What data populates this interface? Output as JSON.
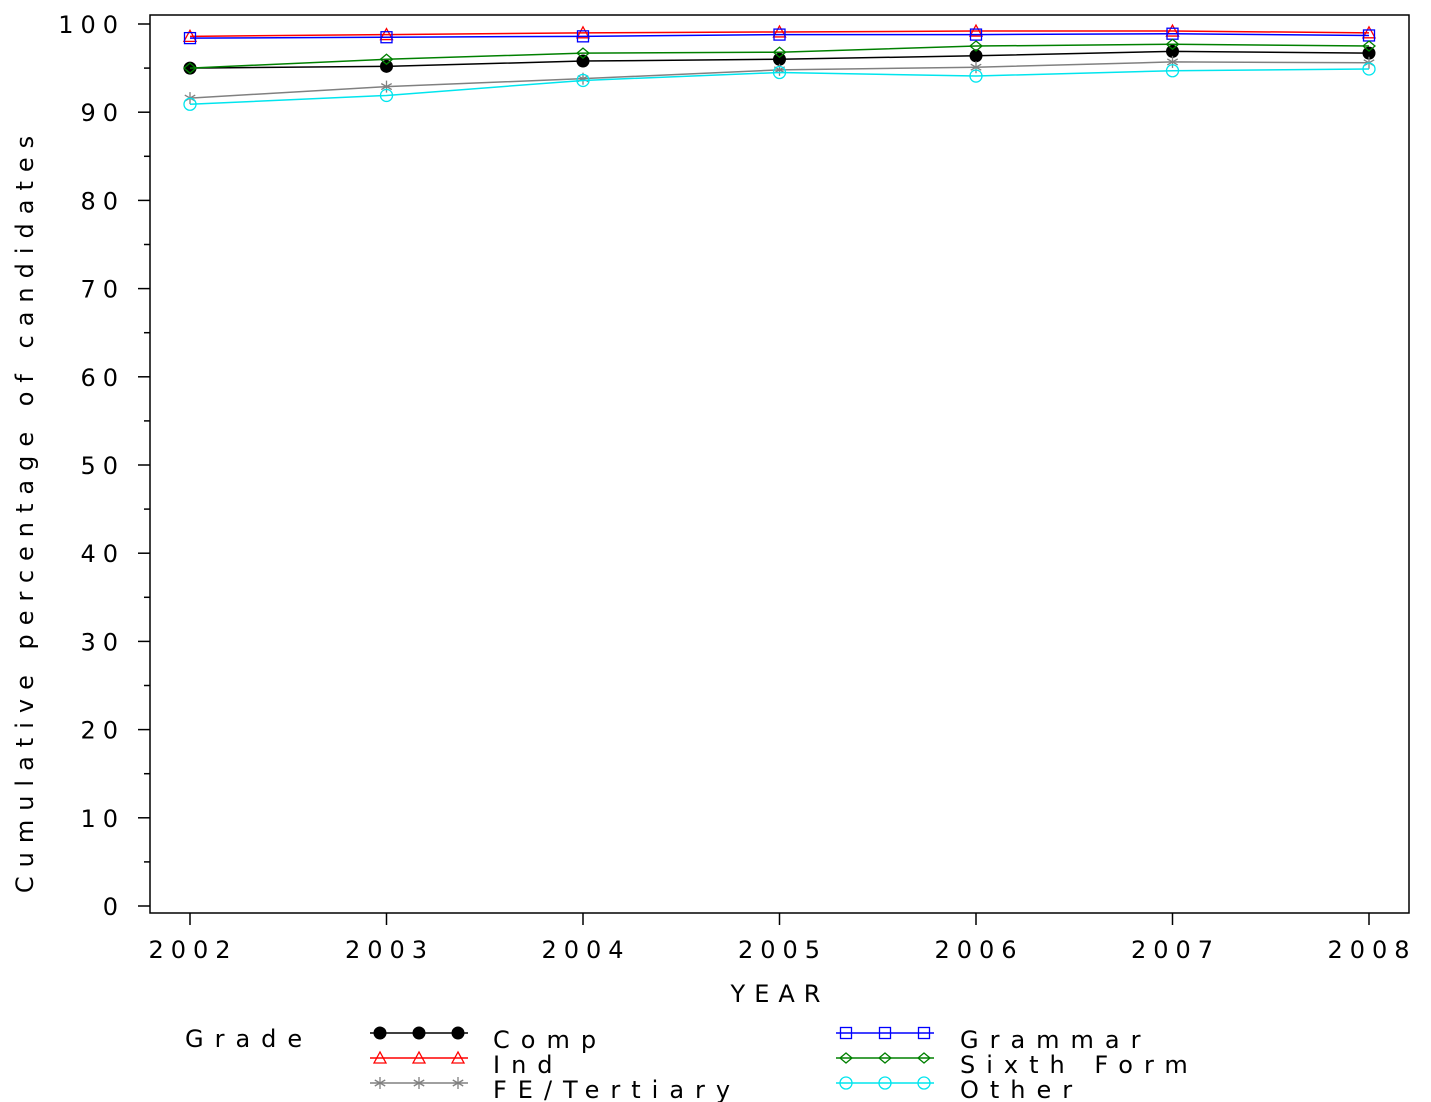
{
  "chart_data": {
    "type": "line",
    "xlabel": "YEAR",
    "ylabel": "Cumulative percentage of candidates",
    "x": [
      "2002",
      "2003",
      "2004",
      "2005",
      "2006",
      "2007",
      "2008"
    ],
    "ylim": [
      0,
      100
    ],
    "yticks": [
      0,
      10,
      20,
      30,
      40,
      50,
      60,
      70,
      80,
      90,
      100
    ],
    "grid": false,
    "legend": {
      "title": "Grade",
      "placement": "bottom"
    },
    "series": [
      {
        "name": "Comp",
        "color": "#000000",
        "marker": "filled-circle",
        "values": [
          95.0,
          95.2,
          95.8,
          96.0,
          96.4,
          96.9,
          96.7
        ]
      },
      {
        "name": "Ind",
        "color": "#ff0000",
        "marker": "triangle",
        "values": [
          98.6,
          98.8,
          99.0,
          99.1,
          99.2,
          99.2,
          99.0
        ]
      },
      {
        "name": "FE/Tertiary",
        "color": "#808080",
        "marker": "asterisk",
        "values": [
          91.6,
          92.9,
          93.8,
          94.8,
          95.1,
          95.7,
          95.6
        ]
      },
      {
        "name": "Grammar",
        "color": "#0000ff",
        "marker": "square",
        "values": [
          98.4,
          98.5,
          98.6,
          98.8,
          98.8,
          98.9,
          98.7
        ]
      },
      {
        "name": "Sixth Form",
        "color": "#008000",
        "marker": "diamond",
        "values": [
          95.0,
          96.0,
          96.7,
          96.8,
          97.5,
          97.7,
          97.5
        ]
      },
      {
        "name": "Other",
        "color": "#00e5ee",
        "marker": "circle",
        "values": [
          90.9,
          91.9,
          93.6,
          94.5,
          94.1,
          94.7,
          94.9
        ]
      }
    ]
  }
}
